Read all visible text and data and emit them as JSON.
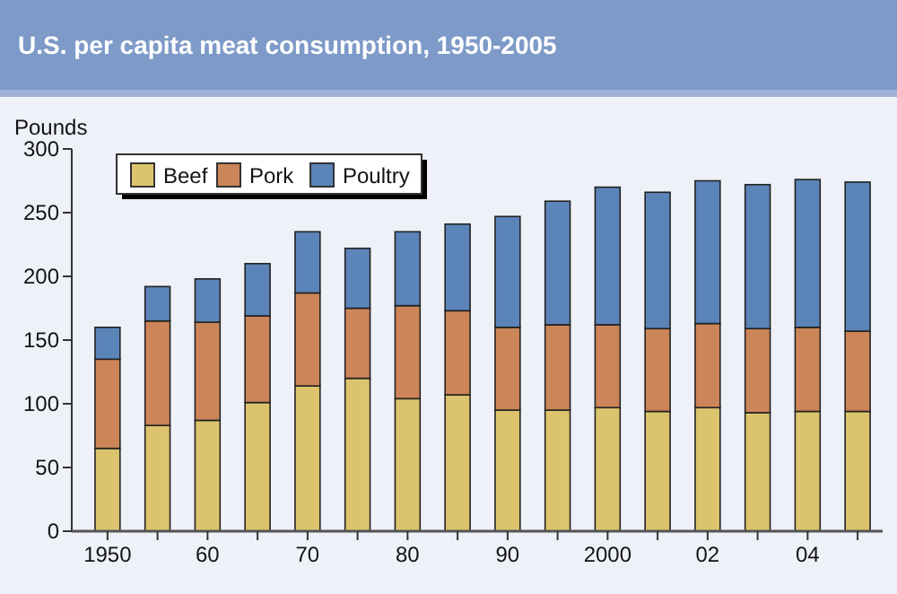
{
  "chart_data": {
    "type": "bar",
    "title": "U.S. per capita meat consumption, 1950-2005",
    "ylabel": "Pounds",
    "stacked": true,
    "categories": [
      "1950",
      null,
      "60",
      null,
      "70",
      null,
      "80",
      null,
      "90",
      null,
      "2000",
      null,
      "02",
      null,
      "04",
      null
    ],
    "series": [
      {
        "name": "Beef",
        "color": "#dcc46e",
        "values": [
          65,
          83,
          87,
          101,
          114,
          120,
          104,
          107,
          95,
          95,
          97,
          94,
          97,
          93,
          94,
          94
        ]
      },
      {
        "name": "Pork",
        "color": "#cc8558",
        "values": [
          70,
          82,
          77,
          68,
          73,
          55,
          73,
          66,
          65,
          67,
          65,
          65,
          66,
          66,
          66,
          63
        ]
      },
      {
        "name": "Poultry",
        "color": "#5b84b8",
        "values": [
          25,
          27,
          34,
          41,
          48,
          47,
          58,
          68,
          87,
          97,
          108,
          107,
          112,
          113,
          116,
          117
        ]
      }
    ],
    "ylim": [
      0,
      300
    ],
    "yticks": [
      0,
      50,
      100,
      150,
      200,
      250,
      300
    ],
    "legend": "top left",
    "grid": false
  }
}
